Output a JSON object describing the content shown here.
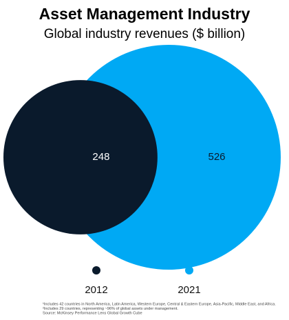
{
  "chart_data": {
    "type": "nested-circle",
    "title": "Asset Management Industry",
    "subtitle": "Global industry revenues ($ billion)",
    "categories": [
      "2012",
      "2021"
    ],
    "values": [
      248,
      526
    ],
    "colors": [
      "#0a1a2c",
      "#00a9f4"
    ],
    "footnotes": [
      "¹Includes 42 countries in North America, Latin America, Western Europe, Central & Eastern Europe, Asia-Pacific, Middle East, and Africa.",
      "²Includes 29 countries, representing ~96% of global assets under management.",
      "Source: McKinsey Performance Lens Global Growth Cube"
    ]
  }
}
